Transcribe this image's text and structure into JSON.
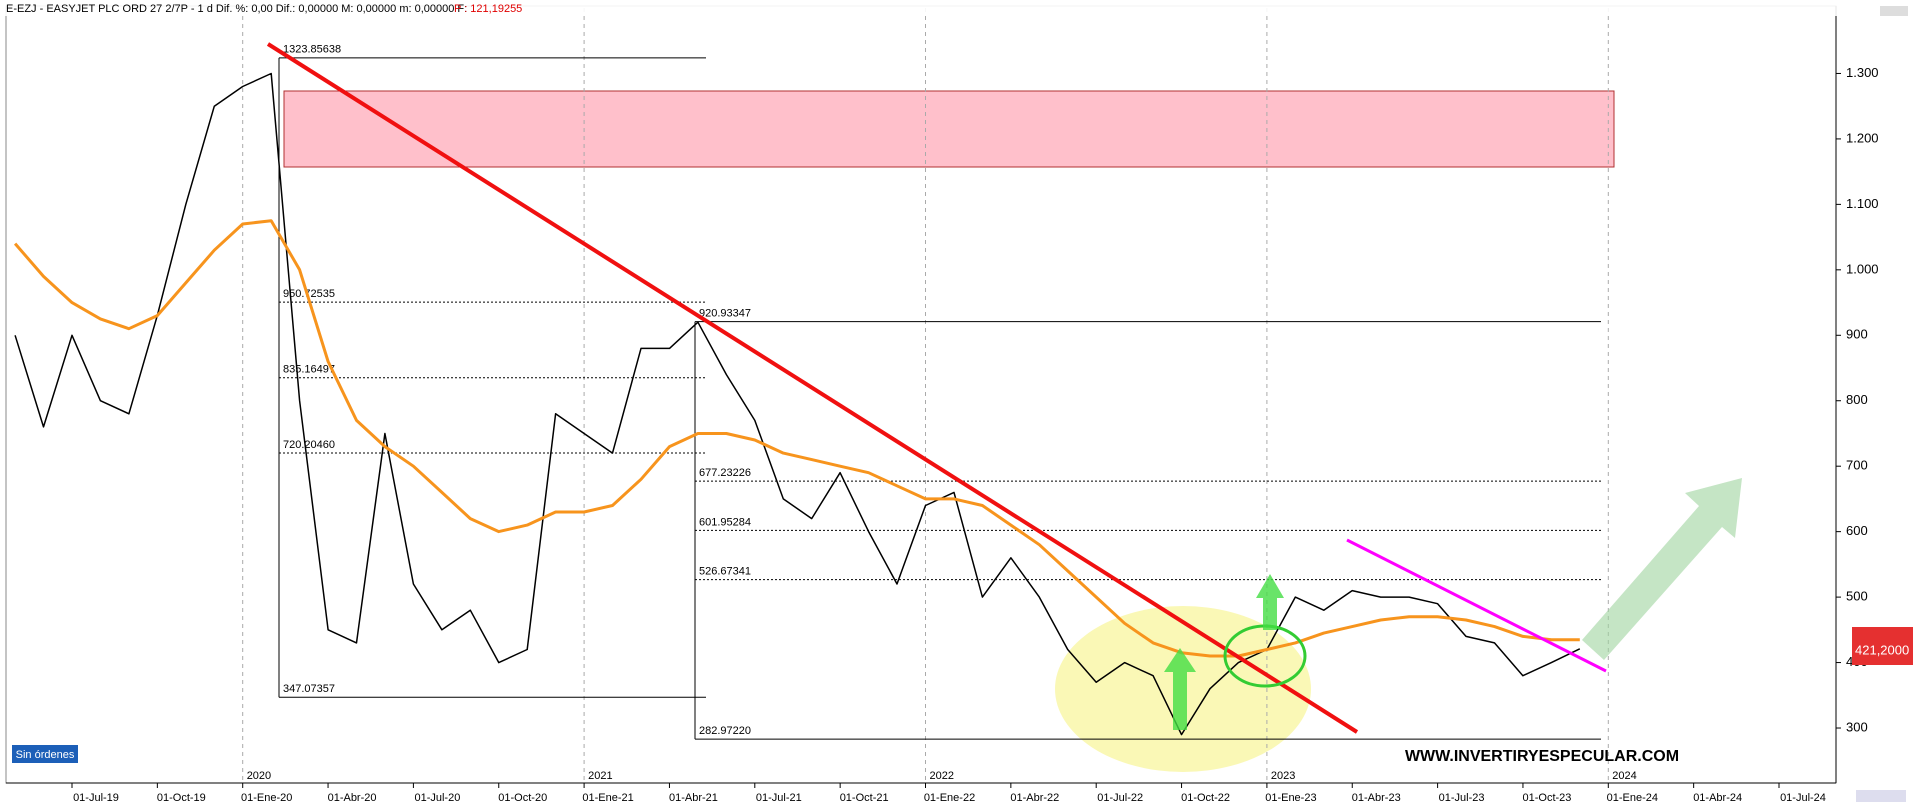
{
  "header": {
    "title": "E-EZJ - EASYJET PLC ORD 27 2/7P - 1 d  Dif. %: 0,00  Dif.: 0,00000  M: 0,00000  m: 0,00000  F:",
    "price_info": "P : 121,19255"
  },
  "chart_data": {
    "type": "line",
    "categories": [
      null,
      null,
      "01-Jul-19",
      null,
      null,
      "01-Oct-19",
      null,
      null,
      "01-Ene-20",
      null,
      null,
      "01-Abr-20",
      null,
      null,
      "01-Jul-20",
      null,
      null,
      "01-Oct-20",
      null,
      null,
      "01-Ene-21",
      null,
      null,
      "01-Abr-21",
      null,
      null,
      "01-Jul-21",
      null,
      null,
      "01-Oct-21",
      null,
      null,
      "01-Ene-22",
      null,
      null,
      "01-Abr-22",
      null,
      null,
      "01-Jul-22",
      null,
      null,
      "01-Oct-22",
      null,
      null,
      "01-Ene-23",
      null,
      null,
      "01-Abr-23",
      null,
      null,
      "01-Jul-23",
      null,
      null,
      "01-Oct-23",
      null,
      null,
      "01-Ene-24",
      null,
      null,
      "01-Abr-24",
      null,
      null,
      "01-Jul-24",
      null
    ],
    "series": [
      {
        "color": "#000000",
        "values": [
          900,
          760,
          900,
          800,
          780,
          930,
          1100,
          1250,
          1280,
          1300,
          800,
          450,
          430,
          750,
          520,
          450,
          480,
          400,
          420,
          780,
          750,
          720,
          880,
          880,
          920,
          840,
          770,
          650,
          620,
          690,
          600,
          520,
          640,
          660,
          500,
          560,
          500,
          420,
          370,
          400,
          380,
          290,
          360,
          400,
          420,
          500,
          480,
          510,
          500,
          500,
          490,
          440,
          430,
          380,
          400,
          421,
          null,
          null,
          null,
          null,
          null,
          null,
          null,
          null
        ]
      },
      {
        "color": "#f7941d",
        "values": [
          1040,
          990,
          950,
          925,
          910,
          930,
          980,
          1030,
          1070,
          1075,
          1000,
          860,
          770,
          730,
          700,
          660,
          620,
          600,
          610,
          630,
          630,
          640,
          680,
          730,
          750,
          750,
          740,
          720,
          710,
          700,
          690,
          670,
          650,
          650,
          640,
          610,
          580,
          540,
          500,
          460,
          430,
          415,
          410,
          410,
          420,
          430,
          445,
          455,
          465,
          470,
          470,
          465,
          455,
          440,
          435,
          435,
          null,
          null,
          null,
          null,
          null,
          null,
          null,
          null
        ]
      }
    ],
    "ylim": [
      216,
      1400
    ],
    "yticks": [
      300,
      400,
      500,
      600,
      700,
      800,
      900,
      {
        "value": 1000,
        "label": "1.000"
      },
      {
        "value": 1100,
        "label": "1.100"
      },
      {
        "value": 1200,
        "label": "1.200"
      },
      {
        "value": 1300,
        "label": "1.300"
      }
    ],
    "year_labels": [
      "2020",
      "2021",
      "2022",
      "2023",
      "2024"
    ],
    "fib_levels_1": [
      1323.85638,
      950.72535,
      835.16497,
      {
        "value": 720.2046,
        "label": "720.20460"
      },
      347.07357
    ],
    "fib_levels_2": [
      920.93347,
      677.23226,
      601.95284,
      526.67341,
      {
        "value": 282.9722,
        "label": "282.97220"
      }
    ],
    "last_price_label": "421,2000"
  },
  "status": "Sin órdenes",
  "watermark": "WWW.INVERTIRYESPECULAR.COM"
}
